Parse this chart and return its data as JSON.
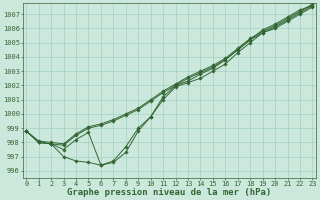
{
  "title": "Graphe pression niveau de la mer (hPa)",
  "x": [
    0,
    1,
    2,
    3,
    4,
    5,
    6,
    7,
    8,
    9,
    10,
    11,
    12,
    13,
    14,
    15,
    16,
    17,
    18,
    19,
    20,
    21,
    22,
    23
  ],
  "series_low1": [
    998.8,
    998.0,
    997.9,
    997.0,
    996.7,
    996.6,
    996.4,
    996.6,
    997.3,
    998.8,
    999.8,
    1001.0,
    1001.9,
    1002.2,
    1002.5,
    1003.0,
    1003.5,
    1004.3,
    1005.0,
    1005.7,
    1006.0,
    1006.5,
    1007.0,
    1007.5
  ],
  "series_low2": [
    998.8,
    998.0,
    997.9,
    997.5,
    998.2,
    998.7,
    996.4,
    996.7,
    997.7,
    999.0,
    999.8,
    1001.2,
    1002.0,
    1002.3,
    1002.8,
    1003.2,
    1003.8,
    1004.5,
    1005.2,
    1005.9,
    1006.3,
    1006.8,
    1007.3,
    1007.6
  ],
  "series_high1": [
    998.8,
    998.0,
    997.9,
    997.8,
    998.5,
    999.0,
    999.2,
    999.5,
    999.9,
    1000.3,
    1000.9,
    1001.5,
    1002.0,
    1002.5,
    1002.9,
    1003.3,
    1003.8,
    1004.5,
    1005.2,
    1005.7,
    1006.1,
    1006.6,
    1007.1,
    1007.6
  ],
  "series_high2": [
    998.8,
    998.1,
    998.0,
    997.9,
    998.6,
    999.1,
    999.3,
    999.6,
    1000.0,
    1000.4,
    1001.0,
    1001.6,
    1002.1,
    1002.6,
    1003.0,
    1003.4,
    1003.9,
    1004.6,
    1005.3,
    1005.8,
    1006.2,
    1006.7,
    1007.2,
    1007.7
  ],
  "line_color": "#336633",
  "marker_color": "#336633",
  "bg_color": "#cce8dd",
  "grid_color": "#99ccbb",
  "text_color": "#336633",
  "ylim_min": 995.5,
  "ylim_max": 1007.8,
  "yticks": [
    996,
    997,
    998,
    999,
    1000,
    1001,
    1002,
    1003,
    1004,
    1005,
    1006,
    1007
  ],
  "title_fontsize": 6.5,
  "tick_fontsize": 5.0
}
